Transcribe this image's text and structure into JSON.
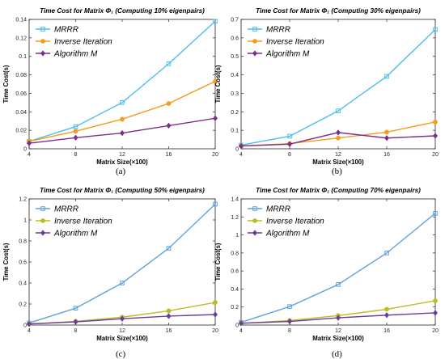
{
  "chart_data": [
    {
      "type": "line",
      "title": "Time Cost for Matrix Φ₁ (Computing 10% eigenpairs)",
      "caption": "(a)",
      "xlabel": "Matrix Size(×100)",
      "ylabel": "Time Cost(s)",
      "x": [
        4,
        8,
        12,
        16,
        20
      ],
      "xticks": [
        "4",
        "8",
        "12",
        "16",
        "20"
      ],
      "xlim": [
        4,
        20
      ],
      "ylim": [
        0,
        0.14
      ],
      "yticks": [
        "0",
        "0.02",
        "0.04",
        "0.06",
        "0.08",
        "0.1",
        "0.12",
        "0.14"
      ],
      "legend": "top-left",
      "series": [
        {
          "name": "MRRR",
          "color": "#4dbeee",
          "marker": "square",
          "values": [
            0.008,
            0.024,
            0.05,
            0.092,
            0.138
          ]
        },
        {
          "name": "Inverse Iteration",
          "color": "#f59c1c",
          "marker": "circle",
          "values": [
            0.008,
            0.019,
            0.032,
            0.049,
            0.073
          ]
        },
        {
          "name": "Algorithm M",
          "color": "#7e2f8e",
          "marker": "diamond",
          "values": [
            0.006,
            0.012,
            0.017,
            0.025,
            0.033
          ]
        }
      ]
    },
    {
      "type": "line",
      "title": "Time Cost for Matrix Φ₁ (Computing 30% eigenpairs)",
      "caption": "(b)",
      "xlabel": "Matrix Size(×100)",
      "ylabel": "Time Cost(s)",
      "x": [
        4,
        8,
        12,
        16,
        20
      ],
      "xticks": [
        "4",
        "8",
        "12",
        "16",
        "20"
      ],
      "xlim": [
        4,
        20
      ],
      "ylim": [
        0,
        0.7
      ],
      "yticks": [
        "0",
        "0.1",
        "0.2",
        "0.3",
        "0.4",
        "0.5",
        "0.6",
        "0.7"
      ],
      "legend": "top-left",
      "series": [
        {
          "name": "MRRR",
          "color": "#4dbeee",
          "marker": "square",
          "values": [
            0.02,
            0.068,
            0.205,
            0.392,
            0.645
          ]
        },
        {
          "name": "Inverse Iteration",
          "color": "#f59c1c",
          "marker": "circle",
          "values": [
            0.015,
            0.028,
            0.058,
            0.09,
            0.145
          ]
        },
        {
          "name": "Algorithm M",
          "color": "#7e2f8e",
          "marker": "diamond",
          "values": [
            0.015,
            0.025,
            0.088,
            0.058,
            0.07
          ]
        }
      ]
    },
    {
      "type": "line",
      "title": "Time Cost for Matrix Φ₁ (Computing 50% eigenpairs)",
      "caption": "(c)",
      "xlabel": "Matrix Size(×100)",
      "ylabel": "Time Cost(s)",
      "x": [
        4,
        8,
        12,
        16,
        20
      ],
      "xticks": [
        "4",
        "8",
        "12",
        "16",
        "20"
      ],
      "xlim": [
        4,
        20
      ],
      "ylim": [
        0,
        1.2
      ],
      "yticks": [
        "0",
        "0.2",
        "0.4",
        "0.6",
        "0.8",
        "1",
        "1.2"
      ],
      "legend": "top-left",
      "series": [
        {
          "name": "MRRR",
          "color": "#5fa2dd",
          "marker": "square",
          "values": [
            0.02,
            0.16,
            0.4,
            0.73,
            1.15
          ]
        },
        {
          "name": "Inverse Iteration",
          "color": "#bcbd22",
          "marker": "circle",
          "values": [
            0.01,
            0.035,
            0.075,
            0.135,
            0.215
          ]
        },
        {
          "name": "Algorithm M",
          "color": "#6a3d9a",
          "marker": "diamond",
          "values": [
            0.01,
            0.03,
            0.06,
            0.085,
            0.1
          ]
        }
      ]
    },
    {
      "type": "line",
      "title": "Time Cost for Matrix Φ₁ (Computing 70% eigenpairs)",
      "caption": "(d)",
      "xlabel": "Matrix Size(×100)",
      "ylabel": "Time Cost(s)",
      "x": [
        4,
        8,
        12,
        16,
        20
      ],
      "xticks": [
        "4",
        "8",
        "12",
        "16",
        "20"
      ],
      "xlim": [
        4,
        20
      ],
      "ylim": [
        0,
        1.4
      ],
      "yticks": [
        "0",
        "0.2",
        "0.4",
        "0.6",
        "0.8",
        "1",
        "1.2",
        "1.4"
      ],
      "legend": "top-left",
      "series": [
        {
          "name": "MRRR",
          "color": "#5fa2dd",
          "marker": "square",
          "values": [
            0.03,
            0.205,
            0.45,
            0.8,
            1.24
          ]
        },
        {
          "name": "Inverse Iteration",
          "color": "#bcbd22",
          "marker": "circle",
          "values": [
            0.02,
            0.05,
            0.105,
            0.175,
            0.27
          ]
        },
        {
          "name": "Algorithm M",
          "color": "#6a3d9a",
          "marker": "diamond",
          "values": [
            0.02,
            0.04,
            0.08,
            0.11,
            0.135
          ]
        }
      ]
    }
  ]
}
